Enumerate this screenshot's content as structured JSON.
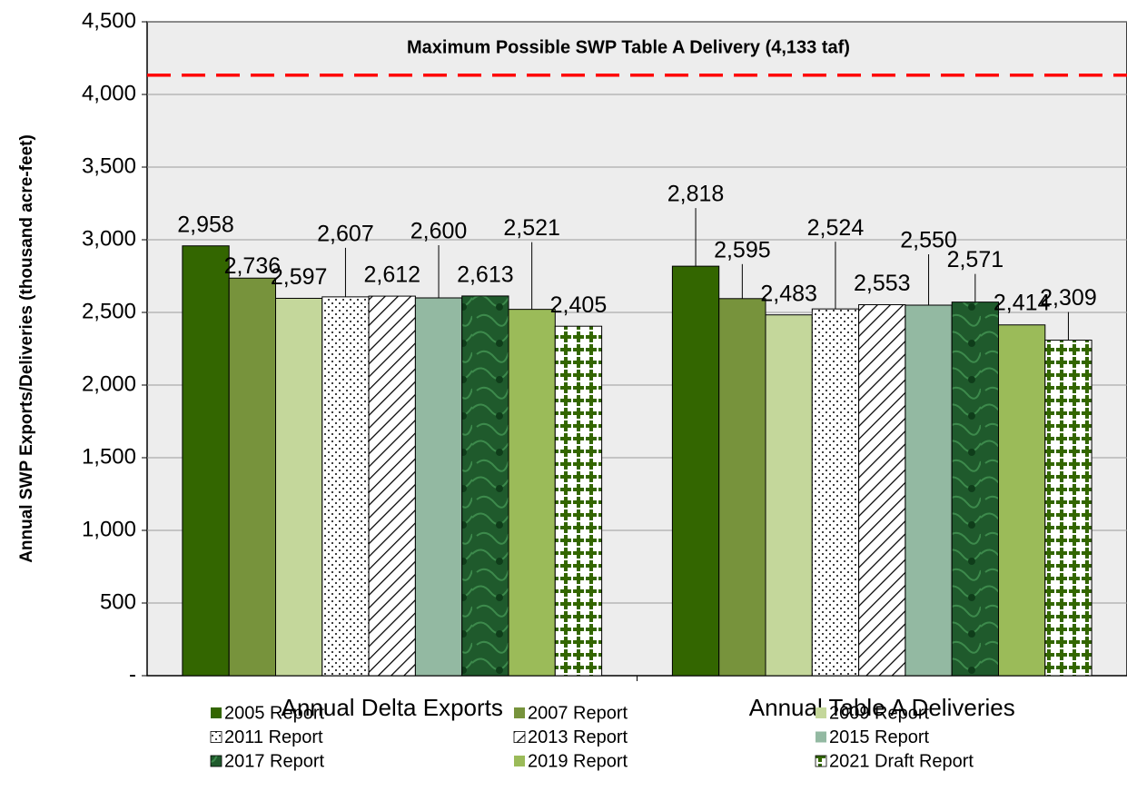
{
  "chart_data": {
    "type": "bar",
    "y_axis_label": "Annual SWP Exports/Deliveries (thousand acre-feet)",
    "categories": [
      "Annual Delta Exports",
      "Annual Table A Deliveries"
    ],
    "reference_line": {
      "value": 4133,
      "label": "Maximum Possible SWP Table A Delivery (4,133 taf)",
      "color": "#ff0000"
    },
    "series": [
      {
        "name": "2005 Report",
        "color": "#336600",
        "values": [
          2958,
          2818
        ],
        "value_labels": [
          "2,958",
          "2,818"
        ]
      },
      {
        "name": "2007 Report",
        "color": "#77933c",
        "values": [
          2736,
          2595
        ],
        "value_labels": [
          "2,736",
          "2,595"
        ]
      },
      {
        "name": "2009 Report",
        "color": "#c4d79b",
        "values": [
          2597,
          2483
        ],
        "value_labels": [
          "2,597",
          "2,483"
        ]
      },
      {
        "name": "2011 Report",
        "color": "#000000",
        "pattern": "dots",
        "values": [
          2607,
          2524
        ],
        "value_labels": [
          "2,607",
          "2,524"
        ]
      },
      {
        "name": "2013 Report",
        "color": "#000000",
        "pattern": "hatch",
        "values": [
          2612,
          2553
        ],
        "value_labels": [
          "2,612",
          "2,553"
        ]
      },
      {
        "name": "2015 Report",
        "color": "#93b9a2",
        "values": [
          2600,
          2550
        ],
        "value_labels": [
          "2,600",
          "2,550"
        ]
      },
      {
        "name": "2017 Report",
        "color": "#1f5a2c",
        "pattern": "marble",
        "values": [
          2613,
          2571
        ],
        "value_labels": [
          "2,613",
          "2,571"
        ]
      },
      {
        "name": "2019 Report",
        "color": "#9bbb59",
        "values": [
          2521,
          2414
        ],
        "value_labels": [
          "2,521",
          "2,414"
        ]
      },
      {
        "name": "2021 Draft Report",
        "color": "#336600",
        "pattern": "cross",
        "values": [
          2405,
          2309
        ],
        "value_labels": [
          "2,405",
          "2,309"
        ]
      }
    ],
    "ylim": [
      0,
      4500
    ],
    "yticks": [
      {
        "value": 0,
        "label": "-"
      },
      500,
      {
        "value": 1000,
        "label": "1,000"
      },
      {
        "value": 1500,
        "label": "1,500"
      },
      {
        "value": 2000,
        "label": "2,000"
      },
      {
        "value": 2500,
        "label": "2,500"
      },
      {
        "value": 3000,
        "label": "3,000"
      },
      {
        "value": 3500,
        "label": "3,500"
      },
      {
        "value": 4000,
        "label": "4,000"
      },
      {
        "value": 4500,
        "label": "4,500"
      }
    ],
    "grid": true
  }
}
